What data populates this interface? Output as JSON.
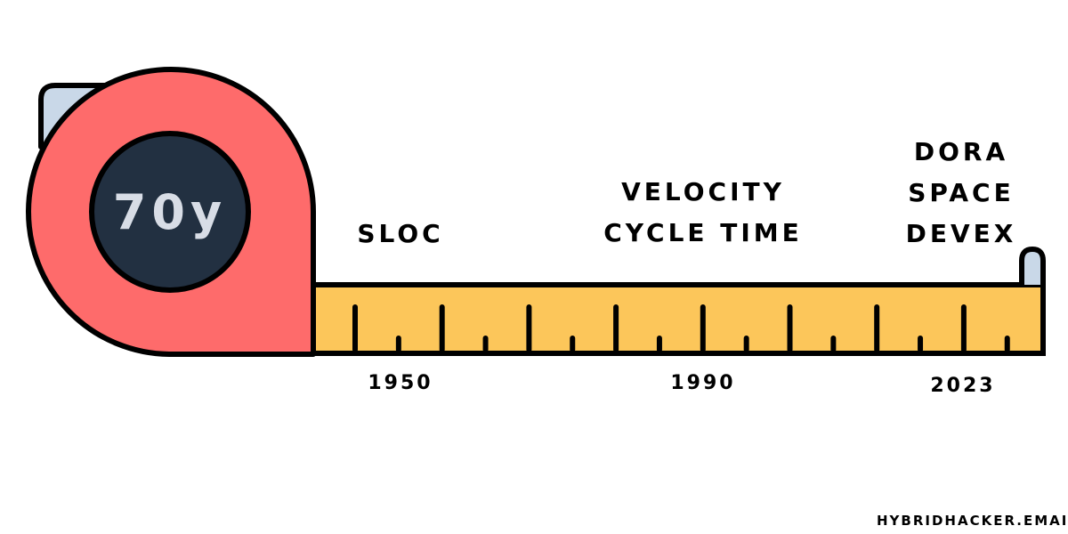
{
  "gauge": {
    "value": "70y"
  },
  "labels": [
    {
      "lines": [
        "SLOC"
      ]
    },
    {
      "lines": [
        "VELOCITY",
        "CYCLE TIME"
      ]
    },
    {
      "lines": [
        "DORA",
        "SPACE",
        "DEVEX"
      ]
    }
  ],
  "years": [
    "1950",
    "1990",
    "2023"
  ],
  "credit": "HYBRIDHACKER.EMAIL",
  "colors": {
    "case": "#fe6b6b",
    "dial": "#223041",
    "dial_text": "#d8dde6",
    "tape": "#fcc65a",
    "clip": "#c9d8e8",
    "outline": "#000000"
  },
  "icons": {
    "tape_measure": "tape-measure-icon"
  }
}
